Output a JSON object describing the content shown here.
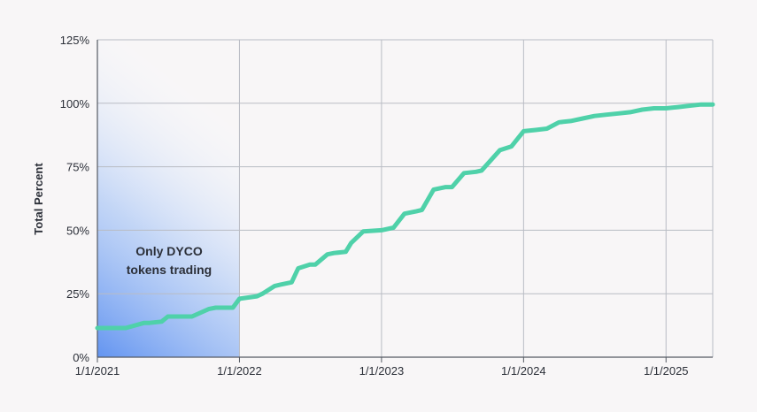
{
  "chart_data": {
    "type": "line",
    "title": "",
    "xlabel": "",
    "ylabel": "Total Percent",
    "ylim": [
      0,
      125
    ],
    "y_ticks": [
      {
        "value": 0,
        "label": "0%"
      },
      {
        "value": 25,
        "label": "25%"
      },
      {
        "value": 50,
        "label": "50%"
      },
      {
        "value": 75,
        "label": "75%"
      },
      {
        "value": 100,
        "label": "100%"
      },
      {
        "value": 125,
        "label": "125%"
      }
    ],
    "xlim": [
      "2021-01-01",
      "2025-05-01"
    ],
    "x_ticks": [
      {
        "value": "2021-01-01",
        "label": "1/1/2021"
      },
      {
        "value": "2022-01-01",
        "label": "1/1/2022"
      },
      {
        "value": "2023-01-01",
        "label": "1/1/2023"
      },
      {
        "value": "2024-01-01",
        "label": "1/1/2024"
      },
      {
        "value": "2025-01-01",
        "label": "1/1/2025"
      }
    ],
    "grid": true,
    "legend": "none",
    "series": [
      {
        "color": "#4fd1a9",
        "x": [
          "2021-01-01",
          "2021-03-01",
          "2021-03-15",
          "2021-05-01",
          "2021-05-15",
          "2021-06-15",
          "2021-07-01",
          "2021-08-15",
          "2021-09-01",
          "2021-10-15",
          "2021-11-01",
          "2021-12-15",
          "2022-01-01",
          "2022-02-15",
          "2022-03-01",
          "2022-04-01",
          "2022-04-15",
          "2022-05-15",
          "2022-06-01",
          "2022-07-01",
          "2022-07-15",
          "2022-08-15",
          "2022-09-01",
          "2022-10-01",
          "2022-10-15",
          "2022-11-15",
          "2023-01-01",
          "2023-02-01",
          "2023-03-01",
          "2023-04-01",
          "2023-04-15",
          "2023-05-15",
          "2023-06-15",
          "2023-07-01",
          "2023-08-01",
          "2023-09-01",
          "2023-09-15",
          "2023-11-01",
          "2023-12-01",
          "2024-01-01",
          "2024-02-01",
          "2024-03-01",
          "2024-04-01",
          "2024-05-01",
          "2024-06-01",
          "2024-07-01",
          "2024-08-01",
          "2024-09-01",
          "2024-10-01",
          "2024-11-01",
          "2024-12-01",
          "2025-01-01",
          "2025-02-01",
          "2025-03-01",
          "2025-04-01",
          "2025-05-01"
        ],
        "values": [
          11.5,
          11.5,
          11.5,
          13.5,
          13.5,
          14,
          16,
          16,
          16,
          19,
          19.5,
          19.5,
          23,
          24,
          25,
          28,
          28.5,
          29.5,
          35,
          36.5,
          36.5,
          40.5,
          41,
          41.5,
          45,
          49.5,
          50,
          51,
          56.5,
          57.5,
          58,
          66,
          67,
          67,
          72.5,
          73,
          73.5,
          81.5,
          83,
          89,
          89.5,
          90,
          92.5,
          93,
          94,
          95,
          95.5,
          96,
          96.5,
          97.5,
          98,
          98,
          98.5,
          99,
          99.5,
          99.5
        ]
      }
    ],
    "shaded_region": {
      "x_start": "2021-01-01",
      "x_end": "2022-01-01",
      "color": "#5b8ff0"
    },
    "annotation": {
      "lines": [
        "Only DYCO",
        "tokens trading"
      ]
    }
  }
}
